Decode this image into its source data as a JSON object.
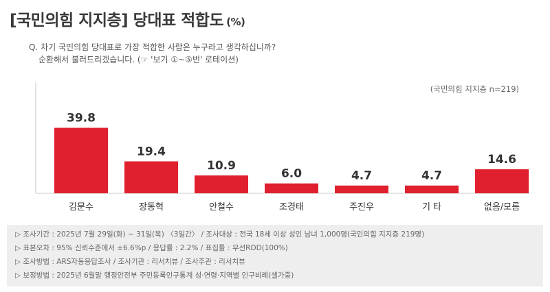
{
  "header": {
    "title": "[국민의힘 지지층] 당대표 적합도",
    "unit": "(%)"
  },
  "question": {
    "line1": "Q. 차기 국민의힘 당대표로 가장 적합한 사람은 누구라고 생각하십니까?",
    "line2": "순환해서 불러드리겠습니다. (☞ '보기 ①~⑤번' 로테이션)"
  },
  "chart_data": {
    "type": "bar",
    "categories": [
      "김문수",
      "장동혁",
      "안철수",
      "조경태",
      "주진우",
      "기 타",
      "없음/모름"
    ],
    "values": [
      39.8,
      19.4,
      10.9,
      6.0,
      4.7,
      4.7,
      14.6
    ],
    "value_labels": [
      "39.8",
      "19.4",
      "10.9",
      "6.0",
      "4.7",
      "4.7",
      "14.6"
    ],
    "annotation": "(국민의힘 지지층 n=219)",
    "ylim": [
      0,
      45
    ],
    "bar_color": "#e0202e"
  },
  "footer": {
    "lines": [
      "▷ 조사기간 : 2025년 7월 29일(화) ~ 31일(목) 〈3일간〉 / 조사대상 : 전국 18세 이상 성인 남녀 1,000명(국민의힘 지지층 219명)",
      "▷ 표본오차 : 95% 신뢰수준에서 ±6.6%p / 응답률 : 2.2% / 표집틀 : 무선RDD(100%)",
      "▷ 조사방법 : ARS자동응답조사 / 조사기관 : 리서치뷰 / 조사주관 : 리서치뷰",
      "▷ 보정방법 : 2025년 6월말 행정안전부 주민등록인구통계 성·연령·지역별 인구비례(셀가중)"
    ]
  }
}
